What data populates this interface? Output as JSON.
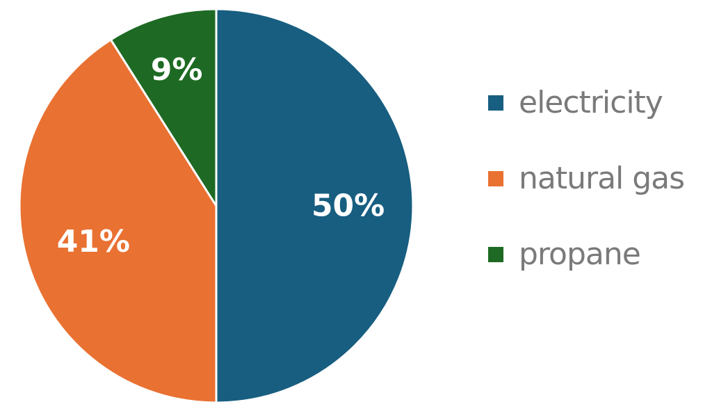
{
  "chart_data": {
    "type": "pie",
    "categories": [
      "electricity",
      "natural gas",
      "propane"
    ],
    "values": [
      50,
      41,
      9
    ],
    "data_labels": [
      "50%",
      "41%",
      "9%"
    ],
    "colors": [
      "#175e80",
      "#e97132",
      "#1e6a24"
    ],
    "start_angle": "12 o'clock",
    "direction": "clockwise",
    "legend": {
      "position": "right",
      "items": [
        {
          "label": "electricity",
          "color": "#175e80"
        },
        {
          "label": "natural gas",
          "color": "#e97132"
        },
        {
          "label": "propane",
          "color": "#1e6a24"
        }
      ]
    }
  }
}
